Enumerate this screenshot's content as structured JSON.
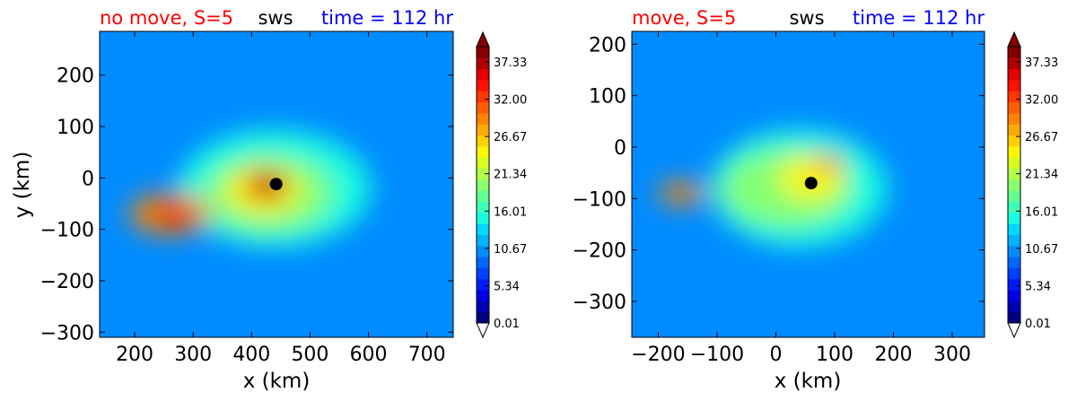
{
  "chart_data": [
    {
      "type": "heatmap",
      "title_left": "no move, S=5",
      "title_center": "sws",
      "title_right": "time = 112 hr",
      "title_colors": {
        "left": "#ff0000",
        "center": "#000000",
        "right": "#0000ff"
      },
      "xlabel": "x (km)",
      "ylabel": "y (km)",
      "xlim": [
        140,
        745
      ],
      "ylim": [
        -310,
        285
      ],
      "xticks": [
        200,
        300,
        400,
        500,
        600,
        700
      ],
      "yticks": [
        200,
        100,
        0,
        -100,
        -200,
        -300
      ],
      "xtick_labels": [
        "200",
        "300",
        "400",
        "500",
        "600",
        "700"
      ],
      "ytick_labels": [
        "200",
        "100",
        "0",
        "−100",
        "−200",
        "−300"
      ],
      "marker": {
        "x": 442,
        "y": -12
      },
      "field": {
        "background": 9,
        "blobs": [
          {
            "x": 440,
            "y": -20,
            "rx": 330,
            "ry": 230,
            "v": 7
          },
          {
            "x": 430,
            "y": -30,
            "rx": 220,
            "ry": 150,
            "v": 6
          },
          {
            "x": 420,
            "y": -25,
            "rx": 130,
            "ry": 90,
            "v": 6
          },
          {
            "x": 260,
            "y": -70,
            "rx": 140,
            "ry": 80,
            "v": 7
          },
          {
            "x": 425,
            "y": -15,
            "rx": 75,
            "ry": 60,
            "v": 8
          },
          {
            "x": 270,
            "y": -70,
            "rx": 65,
            "ry": 45,
            "v": 6
          },
          {
            "x": 430,
            "y": -15,
            "rx": 45,
            "ry": 38,
            "v": 3
          }
        ]
      }
    },
    {
      "type": "heatmap",
      "title_left": "move, S=5",
      "title_center": "sws",
      "title_right": "time = 112 hr",
      "title_colors": {
        "left": "#ff0000",
        "center": "#000000",
        "right": "#0000ff"
      },
      "xlabel": "x (km)",
      "ylabel": "",
      "xlim": [
        -245,
        355
      ],
      "ylim": [
        -370,
        225
      ],
      "xticks": [
        -200,
        -100,
        0,
        100,
        200,
        300
      ],
      "yticks": [
        200,
        100,
        0,
        -100,
        -200,
        -300
      ],
      "xtick_labels": [
        "−200",
        "−100",
        "0",
        "100",
        "200",
        "300"
      ],
      "ytick_labels": [
        "200",
        "100",
        "0",
        "−100",
        "−200",
        "−300"
      ],
      "marker": {
        "x": 60,
        "y": -70
      },
      "field": {
        "background": 9,
        "blobs": [
          {
            "x": 40,
            "y": -80,
            "rx": 300,
            "ry": 230,
            "v": 6
          },
          {
            "x": 20,
            "y": -80,
            "rx": 220,
            "ry": 150,
            "v": 6
          },
          {
            "x": 60,
            "y": -60,
            "rx": 110,
            "ry": 90,
            "v": 4
          },
          {
            "x": -160,
            "y": -90,
            "rx": 80,
            "ry": 45,
            "v": 5
          },
          {
            "x": 90,
            "y": -30,
            "rx": 50,
            "ry": 30,
            "v": 3
          }
        ]
      }
    }
  ],
  "colorbar": {
    "tick_labels": [
      "37.33",
      "32.00",
      "26.67",
      "21.34",
      "16.01",
      "10.67",
      "5.34",
      "0.01"
    ],
    "colors": [
      "#00007f",
      "#0000b2",
      "#0000e5",
      "#001aff",
      "#0040ff",
      "#0066ff",
      "#008cff",
      "#00b2ff",
      "#00d8ff",
      "#17ffe0",
      "#3dffba",
      "#63ff93",
      "#8aff6d",
      "#b0ff47",
      "#d6ff21",
      "#fcf700",
      "#ffd000",
      "#ffaa00",
      "#ff8300",
      "#ff5d00",
      "#ff3700",
      "#ff1000",
      "#e50000",
      "#b20000",
      "#840000"
    ]
  }
}
